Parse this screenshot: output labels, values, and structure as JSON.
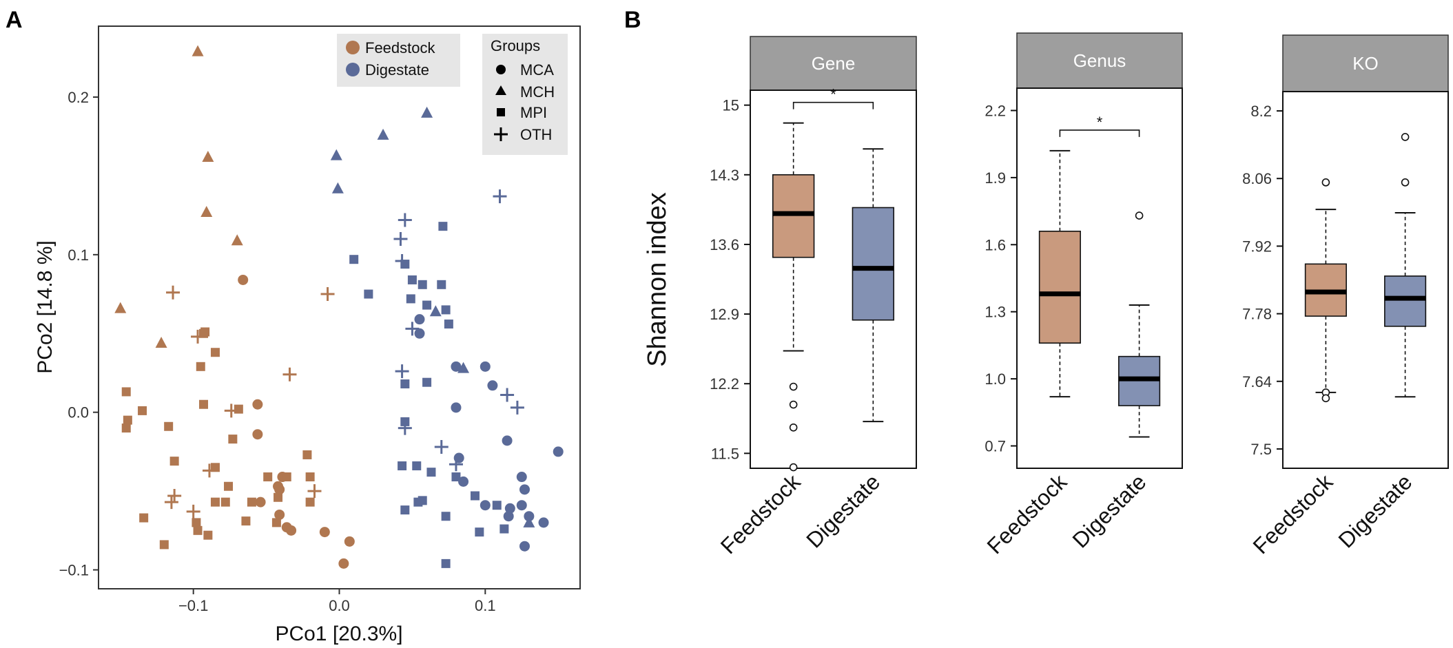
{
  "colors": {
    "feedstock": "#B07750",
    "digestate": "#5A6A98",
    "feedstock_box": "#C99A7E",
    "digestate_box": "#8391B3",
    "strip": "#9E9E9E",
    "legend_bg": "#E6E6E6"
  },
  "chart_data": [
    {
      "panel": "A",
      "type": "scatter",
      "xlabel": "PCo1   [20.3%]",
      "ylabel": "PCo2   [14.8 %]",
      "xlim": [
        -0.165,
        0.165
      ],
      "ylim": [
        -0.112,
        0.245
      ],
      "xticks": [
        -0.1,
        0.0,
        0.1
      ],
      "xtick_labels": [
        "−0.1",
        "0.0",
        "0.1"
      ],
      "yticks": [
        -0.1,
        0.0,
        0.1,
        0.2
      ],
      "ytick_labels": [
        "−0.1",
        "0.0",
        "0.1",
        "0.2"
      ],
      "legend_color": {
        "entries": [
          "Feedstock",
          "Digestate"
        ]
      },
      "legend_shape": {
        "title": "Groups",
        "entries": [
          {
            "label": "MCA",
            "shape": "circle"
          },
          {
            "label": "MCH",
            "shape": "triangle"
          },
          {
            "label": "MPI",
            "shape": "square"
          },
          {
            "label": "OTH",
            "shape": "plus"
          }
        ]
      },
      "series": [
        {
          "name": "Feedstock",
          "points": [
            [
              -0.097,
              0.229,
              "MCH"
            ],
            [
              -0.09,
              0.162,
              "MCH"
            ],
            [
              -0.091,
              0.127,
              "MCH"
            ],
            [
              -0.07,
              0.109,
              "MCH"
            ],
            [
              -0.15,
              0.066,
              "MCH"
            ],
            [
              -0.122,
              0.044,
              "MCH"
            ],
            [
              -0.066,
              0.084,
              "MCA"
            ],
            [
              -0.056,
              0.005,
              "MCA"
            ],
            [
              -0.056,
              -0.014,
              "MCA"
            ],
            [
              -0.039,
              -0.041,
              "MCA"
            ],
            [
              -0.041,
              -0.049,
              "MCA"
            ],
            [
              -0.054,
              -0.057,
              "MCA"
            ],
            [
              -0.041,
              -0.065,
              "MCA"
            ],
            [
              -0.036,
              -0.073,
              "MCA"
            ],
            [
              -0.033,
              -0.075,
              "MCA"
            ],
            [
              -0.01,
              -0.076,
              "MCA"
            ],
            [
              0.003,
              -0.096,
              "MCA"
            ],
            [
              0.007,
              -0.082,
              "MCA"
            ],
            [
              -0.042,
              -0.047,
              "MCA"
            ],
            [
              -0.092,
              0.051,
              "MPI"
            ],
            [
              -0.093,
              0.05,
              "MPI"
            ],
            [
              -0.085,
              0.038,
              "MPI"
            ],
            [
              -0.095,
              0.029,
              "MPI"
            ],
            [
              -0.093,
              0.005,
              "MPI"
            ],
            [
              -0.069,
              0.002,
              "MPI"
            ],
            [
              -0.146,
              0.013,
              "MPI"
            ],
            [
              -0.145,
              -0.005,
              "MPI"
            ],
            [
              -0.146,
              -0.01,
              "MPI"
            ],
            [
              -0.135,
              0.001,
              "MPI"
            ],
            [
              -0.117,
              -0.009,
              "MPI"
            ],
            [
              -0.073,
              -0.017,
              "MPI"
            ],
            [
              -0.113,
              -0.031,
              "MPI"
            ],
            [
              -0.085,
              -0.035,
              "MPI"
            ],
            [
              -0.076,
              -0.047,
              "MPI"
            ],
            [
              -0.078,
              -0.057,
              "MPI"
            ],
            [
              -0.06,
              -0.057,
              "MPI"
            ],
            [
              -0.085,
              -0.057,
              "MPI"
            ],
            [
              -0.064,
              -0.069,
              "MPI"
            ],
            [
              -0.043,
              -0.07,
              "MPI"
            ],
            [
              -0.049,
              -0.041,
              "MPI"
            ],
            [
              -0.036,
              -0.041,
              "MPI"
            ],
            [
              -0.022,
              -0.027,
              "MPI"
            ],
            [
              -0.02,
              -0.041,
              "MPI"
            ],
            [
              -0.02,
              -0.057,
              "MPI"
            ],
            [
              -0.042,
              -0.054,
              "MPI"
            ],
            [
              -0.134,
              -0.067,
              "MPI"
            ],
            [
              -0.098,
              -0.07,
              "MPI"
            ],
            [
              -0.097,
              -0.075,
              "MPI"
            ],
            [
              -0.09,
              -0.078,
              "MPI"
            ],
            [
              -0.12,
              -0.084,
              "MPI"
            ],
            [
              -0.114,
              0.076,
              "OTH"
            ],
            [
              -0.097,
              0.048,
              "OTH"
            ],
            [
              -0.034,
              0.024,
              "OTH"
            ],
            [
              -0.008,
              0.075,
              "OTH"
            ],
            [
              -0.074,
              0.001,
              "OTH"
            ],
            [
              -0.089,
              -0.037,
              "OTH"
            ],
            [
              -0.113,
              -0.053,
              "OTH"
            ],
            [
              -0.115,
              -0.057,
              "OTH"
            ],
            [
              -0.1,
              -0.063,
              "OTH"
            ],
            [
              -0.017,
              -0.05,
              "OTH"
            ]
          ]
        },
        {
          "name": "Digestate",
          "points": [
            [
              0.06,
              0.19,
              "MCH"
            ],
            [
              0.03,
              0.176,
              "MCH"
            ],
            [
              -0.002,
              0.163,
              "MCH"
            ],
            [
              -0.001,
              0.142,
              "MCH"
            ],
            [
              0.066,
              0.064,
              "MCH"
            ],
            [
              0.085,
              0.028,
              "MCH"
            ],
            [
              0.13,
              -0.07,
              "MCH"
            ],
            [
              0.055,
              0.059,
              "MCA"
            ],
            [
              0.08,
              0.029,
              "MCA"
            ],
            [
              0.1,
              0.029,
              "MCA"
            ],
            [
              0.105,
              0.017,
              "MCA"
            ],
            [
              0.08,
              0.003,
              "MCA"
            ],
            [
              0.115,
              -0.018,
              "MCA"
            ],
            [
              0.082,
              -0.029,
              "MCA"
            ],
            [
              0.125,
              -0.041,
              "MCA"
            ],
            [
              0.127,
              -0.049,
              "MCA"
            ],
            [
              0.125,
              -0.059,
              "MCA"
            ],
            [
              0.1,
              -0.059,
              "MCA"
            ],
            [
              0.117,
              -0.061,
              "MCA"
            ],
            [
              0.116,
              -0.066,
              "MCA"
            ],
            [
              0.13,
              -0.066,
              "MCA"
            ],
            [
              0.14,
              -0.07,
              "MCA"
            ],
            [
              0.127,
              -0.085,
              "MCA"
            ],
            [
              0.15,
              -0.025,
              "MCA"
            ],
            [
              0.085,
              -0.044,
              "MCA"
            ],
            [
              0.055,
              0.05,
              "MCA"
            ],
            [
              0.01,
              0.097,
              "MPI"
            ],
            [
              0.02,
              0.075,
              "MPI"
            ],
            [
              0.071,
              0.118,
              "MPI"
            ],
            [
              0.045,
              0.094,
              "MPI"
            ],
            [
              0.05,
              0.084,
              "MPI"
            ],
            [
              0.07,
              0.081,
              "MPI"
            ],
            [
              0.057,
              0.081,
              "MPI"
            ],
            [
              0.049,
              0.072,
              "MPI"
            ],
            [
              0.06,
              0.068,
              "MPI"
            ],
            [
              0.073,
              0.065,
              "MPI"
            ],
            [
              0.075,
              0.056,
              "MPI"
            ],
            [
              0.045,
              0.018,
              "MPI"
            ],
            [
              0.06,
              0.019,
              "MPI"
            ],
            [
              0.045,
              -0.006,
              "MPI"
            ],
            [
              0.043,
              -0.034,
              "MPI"
            ],
            [
              0.053,
              -0.034,
              "MPI"
            ],
            [
              0.063,
              -0.038,
              "MPI"
            ],
            [
              0.08,
              -0.041,
              "MPI"
            ],
            [
              0.054,
              -0.057,
              "MPI"
            ],
            [
              0.057,
              -0.056,
              "MPI"
            ],
            [
              0.045,
              -0.062,
              "MPI"
            ],
            [
              0.073,
              -0.066,
              "MPI"
            ],
            [
              0.093,
              -0.053,
              "MPI"
            ],
            [
              0.108,
              -0.059,
              "MPI"
            ],
            [
              0.096,
              -0.076,
              "MPI"
            ],
            [
              0.073,
              -0.096,
              "MPI"
            ],
            [
              0.113,
              -0.074,
              "MPI"
            ],
            [
              0.045,
              0.122,
              "OTH"
            ],
            [
              0.042,
              0.11,
              "OTH"
            ],
            [
              0.043,
              0.096,
              "OTH"
            ],
            [
              0.11,
              0.137,
              "OTH"
            ],
            [
              0.05,
              0.053,
              "OTH"
            ],
            [
              0.043,
              0.026,
              "OTH"
            ],
            [
              0.045,
              -0.01,
              "OTH"
            ],
            [
              0.07,
              -0.022,
              "OTH"
            ],
            [
              0.08,
              -0.033,
              "OTH"
            ],
            [
              0.115,
              0.011,
              "OTH"
            ],
            [
              0.122,
              0.003,
              "OTH"
            ]
          ]
        }
      ]
    },
    {
      "panel": "B",
      "type": "box",
      "ylabel": "Shannon index",
      "categories": [
        "Feedstock",
        "Digestate"
      ],
      "facets": [
        {
          "strip": "Gene",
          "ylim": [
            11.35,
            15.15
          ],
          "ticks": [
            11.5,
            12.2,
            12.9,
            13.6,
            14.3,
            15
          ],
          "tick_labels": [
            "11.5",
            "12.2",
            "12.9",
            "13.6",
            "14.3",
            "15"
          ],
          "signif": "*",
          "boxes": [
            {
              "q1": 13.47,
              "median": 13.91,
              "q3": 14.3,
              "wlo": 12.53,
              "whi": 14.82,
              "outliers": [
                12.17,
                11.99,
                11.76,
                11.36
              ]
            },
            {
              "q1": 12.84,
              "median": 13.36,
              "q3": 13.97,
              "wlo": 11.82,
              "whi": 14.56,
              "outliers": []
            }
          ]
        },
        {
          "strip": "Genus",
          "ylim": [
            0.6,
            2.3
          ],
          "ticks": [
            0.7,
            1.0,
            1.3,
            1.6,
            1.9,
            2.2
          ],
          "tick_labels": [
            "0.7",
            "1.0",
            "1.3",
            "1.6",
            "1.9",
            "2.2"
          ],
          "signif": "*",
          "boxes": [
            {
              "q1": 1.16,
              "median": 1.38,
              "q3": 1.66,
              "wlo": 0.92,
              "whi": 2.02,
              "outliers": []
            },
            {
              "q1": 0.88,
              "median": 1.0,
              "q3": 1.1,
              "wlo": 0.74,
              "whi": 1.33,
              "outliers": [
                1.73
              ]
            }
          ]
        },
        {
          "strip": "KO",
          "ylim": [
            7.46,
            8.24
          ],
          "ticks": [
            7.5,
            7.64,
            7.78,
            7.92,
            8.06,
            8.2
          ],
          "tick_labels": [
            "7.5",
            "7.64",
            "7.78",
            "7.92",
            "8.06",
            "8.2"
          ],
          "signif": "",
          "boxes": [
            {
              "q1": 7.775,
              "median": 7.825,
              "q3": 7.883,
              "wlo": 7.617,
              "whi": 7.996,
              "outliers": [
                8.052,
                7.617,
                7.605
              ]
            },
            {
              "q1": 7.754,
              "median": 7.812,
              "q3": 7.858,
              "wlo": 7.608,
              "whi": 7.989,
              "outliers": [
                8.146,
                8.052
              ]
            }
          ]
        }
      ]
    }
  ],
  "panel_labels": {
    "a": "A",
    "b": "B"
  }
}
